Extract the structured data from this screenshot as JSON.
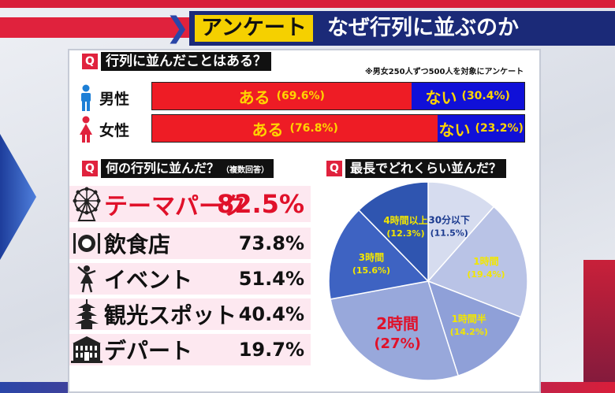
{
  "header": {
    "badge": "アンケート",
    "title": "なぜ行列に並ぶのか"
  },
  "q1": {
    "badge": "Q",
    "question": "行列に並んだことはある？",
    "note": "※男女250人ずつ500人を対象にアンケート",
    "rows": [
      {
        "label": "男性",
        "yes_label": "ある",
        "yes_pct": "(69.6%)",
        "no_label": "ない",
        "no_pct": "(30.4%)",
        "yes_value": 69.6,
        "no_value": 30.4
      },
      {
        "label": "女性",
        "yes_label": "ある",
        "yes_pct": "(76.8%)",
        "no_label": "ない",
        "no_pct": "(23.2%)",
        "yes_value": 76.8,
        "no_value": 23.2
      }
    ],
    "colors": {
      "yes": "#ee1c25",
      "no": "#1010d8",
      "text": "#ffd400"
    }
  },
  "q2": {
    "badge": "Q",
    "question": "何の行列に並んだ？",
    "note": "（複数回答）",
    "items": [
      {
        "name": "テーマパーク",
        "pct": "82.5%",
        "icon": "ferris-wheel-icon"
      },
      {
        "name": "飲食店",
        "pct": "73.8%",
        "icon": "dining-plate-icon"
      },
      {
        "name": "イベント",
        "pct": "51.4%",
        "icon": "dancer-icon"
      },
      {
        "name": "観光スポット",
        "pct": "40.4%",
        "icon": "pagoda-icon"
      },
      {
        "name": "デパート",
        "pct": "19.7%",
        "icon": "department-store-icon"
      }
    ],
    "highlight_color": "#e0112a"
  },
  "q3": {
    "badge": "Q",
    "question": "最長でどれくらい並んだ？"
  },
  "chart_data": [
    {
      "type": "bar",
      "title": "行列に並んだことはある？",
      "categories": [
        "男性",
        "女性"
      ],
      "series": [
        {
          "name": "ある",
          "values": [
            69.6,
            76.8
          ]
        },
        {
          "name": "ない",
          "values": [
            30.4,
            23.2
          ]
        }
      ],
      "stacked": true,
      "orientation": "horizontal"
    },
    {
      "type": "bar",
      "title": "何の行列に並んだ？",
      "categories": [
        "テーマパーク",
        "飲食店",
        "イベント",
        "観光スポット",
        "デパート"
      ],
      "values": [
        82.5,
        73.8,
        51.4,
        40.4,
        19.7
      ]
    },
    {
      "type": "pie",
      "title": "最長でどれくらい並んだ？",
      "slices": [
        {
          "label": "30分以下",
          "pct_label": "(11.5%)",
          "value": 11.5,
          "color": "#d6dcef",
          "text_color": "#1b3a8f"
        },
        {
          "label": "1時間",
          "pct_label": "(19.4%)",
          "value": 19.4,
          "color": "#b9c3e6",
          "text_color": "#f2e600"
        },
        {
          "label": "1時間半",
          "pct_label": "(14.2%)",
          "value": 14.2,
          "color": "#8fa0d8",
          "text_color": "#f2e600"
        },
        {
          "label": "2時間",
          "pct_label": "(27%)",
          "value": 27,
          "color": "#98a8db",
          "text_color": "#e0112a"
        },
        {
          "label": "3時間",
          "pct_label": "(15.6%)",
          "value": 15.6,
          "color": "#3e63c2",
          "text_color": "#f2e600"
        },
        {
          "label": "4時間以上",
          "pct_label": "(12.3%)",
          "value": 12.3,
          "color": "#2f55b0",
          "text_color": "#f2e600"
        }
      ]
    }
  ]
}
